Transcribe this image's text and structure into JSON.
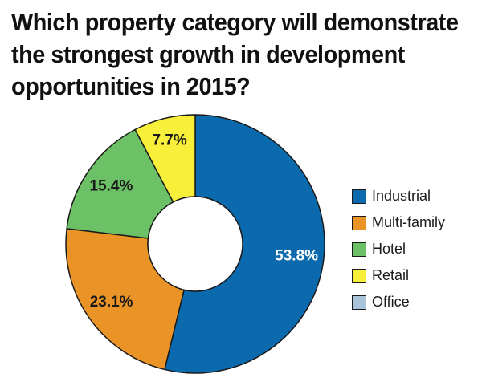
{
  "title_lines": [
    "Which property category will demonstrate",
    "the strongest growth in development",
    "opportunities in 2015?"
  ],
  "chart_data": {
    "type": "pie",
    "variant": "donut",
    "categories": [
      "Industrial",
      "Multi-family",
      "Hotel",
      "Retail",
      "Office"
    ],
    "values": [
      53.8,
      23.1,
      15.4,
      7.7,
      0
    ],
    "data_labels": [
      "53.8%",
      "23.1%",
      "15.4%",
      "7.7%",
      ""
    ],
    "colors": [
      "#0b6aad",
      "#ea9427",
      "#6cc066",
      "#f7ef3a",
      "#a9c3da"
    ],
    "label_colors": [
      "#ffffff",
      "#1a1a1a",
      "#1a1a1a",
      "#1a1a1a",
      "#1a1a1a"
    ],
    "start": "top, clockwise",
    "legend_placement": "right"
  },
  "legend": [
    {
      "label": "Industrial",
      "color": "#0b6aad"
    },
    {
      "label": "Multi-family",
      "color": "#ea9427"
    },
    {
      "label": "Hotel",
      "color": "#6cc066"
    },
    {
      "label": "Retail",
      "color": "#f7ef3a"
    },
    {
      "label": "Office",
      "color": "#a9c3da"
    }
  ]
}
